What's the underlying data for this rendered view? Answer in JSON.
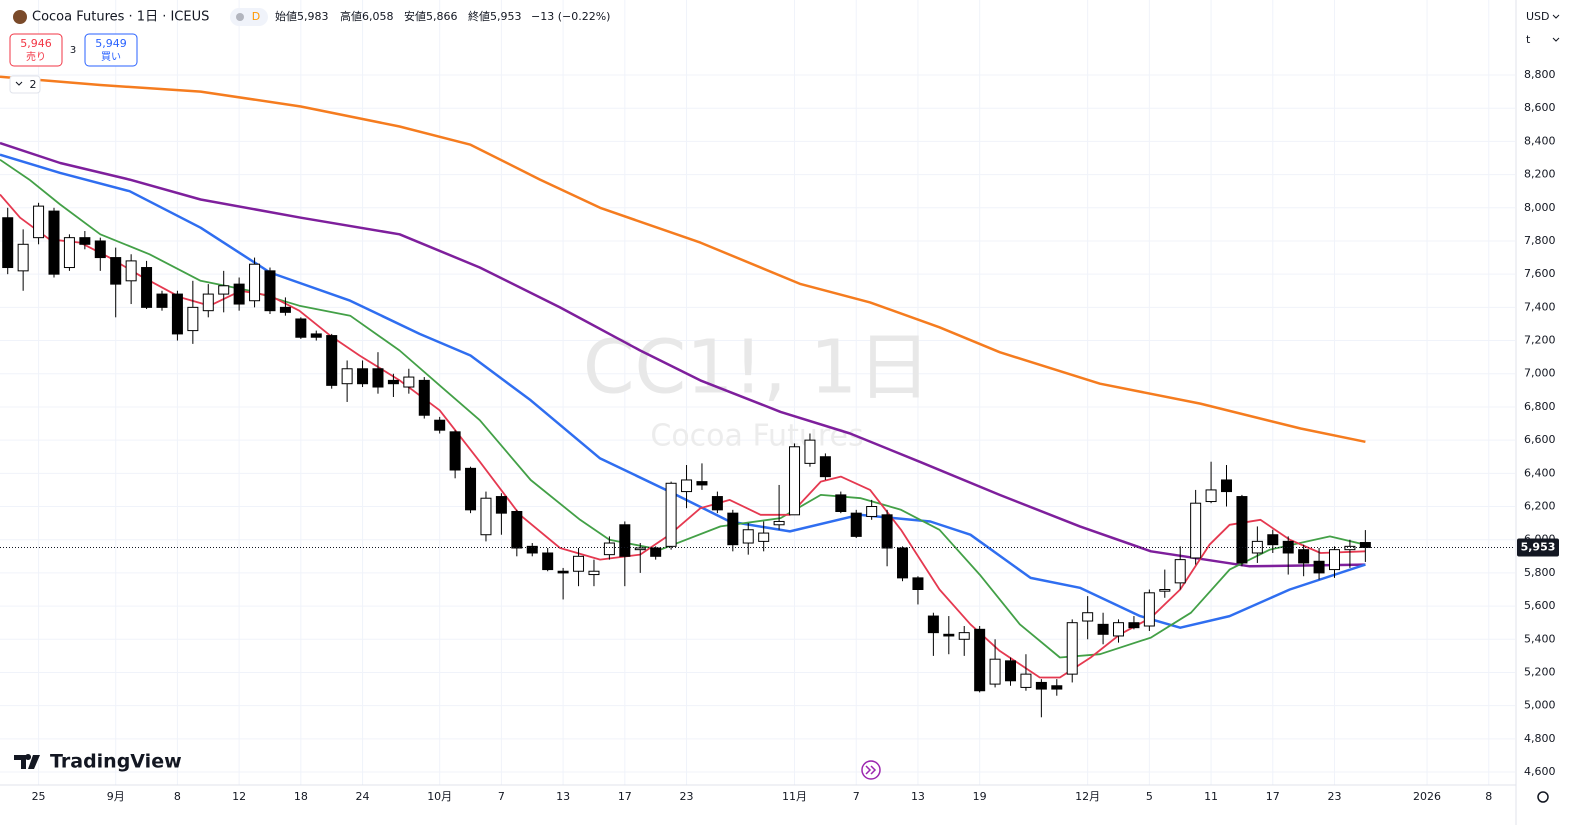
{
  "chart_data": {
    "type": "candlestick",
    "title": "Cocoa Futures · 1日 · ICEUS",
    "badge": "D",
    "ohlc_header": [
      {
        "label": "始値",
        "value": "5,983"
      },
      {
        "label": "高値",
        "value": "6,058"
      },
      {
        "label": "安値",
        "value": "5,866"
      },
      {
        "label": "終値",
        "value": "5,953"
      }
    ],
    "change": "−13 (−0.22%)",
    "trade": {
      "sell_price": "5,946",
      "sell": "売り",
      "spread": "3",
      "buy_price": "5,949",
      "buy": "買い"
    },
    "indicators_count": "2",
    "watermark": {
      "title": "CC1!, 1日",
      "subtitle": "Cocoa Futures"
    },
    "currency": "USD",
    "unit": "t",
    "last_price_label": "5,953",
    "logo": "TradingView",
    "open": [
      7940,
      7620,
      7820,
      7980,
      7640,
      7820,
      7800,
      7700,
      7560,
      7640,
      7480,
      7480,
      7260,
      7380,
      7480,
      7540,
      7440,
      7620,
      7400,
      7330,
      7240,
      7230,
      6940,
      7030,
      7030,
      6960,
      6920,
      6960,
      6720,
      6650,
      6430,
      6030,
      6260,
      6170,
      5960,
      5920,
      5810,
      5810,
      5790,
      5910,
      6090,
      5940,
      5950,
      5960,
      6290,
      6350,
      6260,
      6160,
      5980,
      5990,
      6090,
      6150,
      6460,
      6500,
      6270,
      6160,
      6140,
      6150,
      5950,
      5770,
      5540,
      5430,
      5400,
      5460,
      5130,
      5270,
      5110,
      5140,
      5120,
      5190,
      5510,
      5490,
      5420,
      5500,
      5480,
      5690,
      5740,
      5890,
      6230,
      6360,
      6260,
      5920,
      6030,
      5990,
      5940,
      5870,
      5820,
      5940,
      5983
    ],
    "high": [
      8000,
      7870,
      8030,
      8000,
      7840,
      7860,
      7820,
      7760,
      7720,
      7680,
      7500,
      7500,
      7560,
      7540,
      7620,
      7580,
      7700,
      7640,
      7460,
      7340,
      7260,
      7240,
      7080,
      7080,
      7130,
      7000,
      7030,
      6980,
      6740,
      6660,
      6440,
      6290,
      6280,
      6180,
      5980,
      5950,
      5830,
      5950,
      5880,
      6020,
      6110,
      5980,
      5960,
      6350,
      6450,
      6460,
      6290,
      6180,
      6100,
      6110,
      6330,
      6580,
      6640,
      6520,
      6290,
      6180,
      6240,
      6180,
      5960,
      5780,
      5560,
      5540,
      5480,
      5480,
      5400,
      5290,
      5310,
      5160,
      5160,
      5520,
      5660,
      5560,
      5520,
      5540,
      5700,
      5820,
      5960,
      6300,
      6470,
      6450,
      6270,
      6080,
      6060,
      6020,
      5970,
      5950,
      5960,
      6000,
      6058
    ],
    "low": [
      7600,
      7500,
      7780,
      7580,
      7620,
      7750,
      7620,
      7340,
      7420,
      7390,
      7380,
      7200,
      7180,
      7340,
      7370,
      7380,
      7400,
      7360,
      7350,
      7210,
      7200,
      6910,
      6830,
      6920,
      6880,
      6860,
      6880,
      6730,
      6640,
      6370,
      6160,
      5990,
      6030,
      5900,
      5900,
      5810,
      5640,
      5720,
      5720,
      5880,
      5720,
      5800,
      5880,
      5940,
      6190,
      6300,
      6160,
      5930,
      5910,
      5930,
      6060,
      6150,
      6440,
      6360,
      6160,
      6010,
      6120,
      5840,
      5750,
      5610,
      5300,
      5310,
      5300,
      5080,
      5110,
      5120,
      5090,
      4930,
      5060,
      5140,
      5400,
      5370,
      5380,
      5460,
      5450,
      5650,
      5700,
      5850,
      6220,
      6200,
      5840,
      5860,
      5920,
      5790,
      5780,
      5760,
      5770,
      5830,
      5866
    ],
    "close": [
      7640,
      7780,
      8010,
      7600,
      7820,
      7780,
      7700,
      7540,
      7680,
      7400,
      7400,
      7240,
      7400,
      7480,
      7530,
      7420,
      7660,
      7380,
      7370,
      7220,
      7220,
      6930,
      7030,
      6940,
      6920,
      6940,
      6980,
      6750,
      6660,
      6420,
      6180,
      6250,
      6160,
      5950,
      5920,
      5820,
      5800,
      5900,
      5810,
      5980,
      5900,
      5950,
      5900,
      6340,
      6360,
      6330,
      6180,
      5970,
      6060,
      6040,
      6110,
      6560,
      6600,
      6380,
      6170,
      6020,
      6200,
      5950,
      5770,
      5700,
      5440,
      5420,
      5440,
      5090,
      5280,
      5150,
      5190,
      5100,
      5100,
      5500,
      5560,
      5430,
      5500,
      5470,
      5680,
      5700,
      5880,
      6220,
      6300,
      6290,
      5860,
      5990,
      5970,
      5920,
      5860,
      5800,
      5940,
      5960,
      5953
    ],
    "series": [
      {
        "color": "#f57c1f",
        "x": [
          -0.5,
          6,
          12.5,
          19,
          25.4,
          30,
          34.5,
          38.4,
          44.9,
          51.4,
          55.9,
          60.4,
          64.3,
          70.8,
          77.3,
          83.8,
          88
        ],
        "values": [
          8790,
          8740,
          8700,
          8610,
          8490,
          8380,
          8170,
          8000,
          7790,
          7540,
          7430,
          7280,
          7130,
          6940,
          6820,
          6670,
          6590
        ]
      },
      {
        "color": "#7e1f9c",
        "x": [
          -0.5,
          3.4,
          7.9,
          12.5,
          19,
          25.4,
          30.6,
          35.8,
          41,
          44.9,
          50.1,
          54.6,
          59.1,
          64.3,
          69.5,
          74.1,
          80.5,
          88
        ],
        "values": [
          8390,
          8270,
          8170,
          8050,
          7940,
          7840,
          7640,
          7400,
          7140,
          6960,
          6770,
          6640,
          6470,
          6270,
          6080,
          5930,
          5840,
          5850
        ]
      },
      {
        "color": "#2f6ef0",
        "x": [
          -0.5,
          3.4,
          7.9,
          12.5,
          17,
          22.2,
          26.7,
          30,
          33.9,
          38.4,
          42.9,
          46.8,
          50.7,
          55.2,
          59.8,
          62.4,
          66.3,
          69.5,
          73.4,
          76,
          79.2,
          83.1,
          88
        ],
        "values": [
          8320,
          8210,
          8100,
          7880,
          7610,
          7440,
          7240,
          7110,
          6840,
          6490,
          6290,
          6110,
          6050,
          6150,
          6110,
          6030,
          5770,
          5710,
          5540,
          5470,
          5540,
          5700,
          5850
        ]
      },
      {
        "color": "#43a047",
        "x": [
          -0.5,
          1.4,
          3.4,
          6,
          9.2,
          12.5,
          15.7,
          18.9,
          22.2,
          25.4,
          28,
          30.6,
          33.9,
          37.1,
          39,
          42.3,
          46.2,
          50.1,
          52.7,
          55.3,
          57.9,
          60.4,
          63,
          65.6,
          68.2,
          70.8,
          74.1,
          76.7,
          79.2,
          81.8,
          85.7,
          88
        ],
        "values": [
          8290,
          8170,
          8020,
          7840,
          7720,
          7560,
          7500,
          7410,
          7350,
          7140,
          6930,
          6720,
          6360,
          6120,
          6000,
          5940,
          6080,
          6130,
          6270,
          6250,
          6180,
          6060,
          5790,
          5490,
          5290,
          5310,
          5410,
          5560,
          5820,
          5940,
          6020,
          5970
        ]
      },
      {
        "color": "#e53950",
        "x": [
          -0.5,
          0.8,
          2.7,
          4.7,
          6.6,
          8.6,
          11.2,
          13.1,
          15.1,
          17,
          18.9,
          20.9,
          22.8,
          25.4,
          28,
          30.6,
          33.2,
          35.8,
          38.4,
          41,
          42.9,
          44.9,
          46.8,
          48.8,
          50.7,
          52.7,
          54,
          55.9,
          57.9,
          60.4,
          62.4,
          64.3,
          66.9,
          68.2,
          70.2,
          72.1,
          74.1,
          76,
          77.9,
          79.2,
          81.2,
          83.1,
          85.1,
          88
        ],
        "values": [
          8080,
          7940,
          7810,
          7790,
          7700,
          7590,
          7460,
          7410,
          7500,
          7470,
          7380,
          7230,
          7110,
          6960,
          6780,
          6470,
          6150,
          5950,
          5880,
          5910,
          6030,
          6190,
          6240,
          6150,
          6150,
          6350,
          6380,
          6300,
          6060,
          5700,
          5490,
          5330,
          5170,
          5170,
          5290,
          5430,
          5530,
          5700,
          5970,
          6090,
          6120,
          6000,
          5920,
          5930
        ]
      }
    ],
    "xlim": [
      -0.5,
      97.7
    ],
    "xticks": [
      {
        "value": 2,
        "label": "25"
      },
      {
        "value": 7,
        "label": "9月"
      },
      {
        "value": 11,
        "label": "8"
      },
      {
        "value": 15,
        "label": "12"
      },
      {
        "value": 19,
        "label": "18"
      },
      {
        "value": 23,
        "label": "24"
      },
      {
        "value": 28,
        "label": "10月"
      },
      {
        "value": 32,
        "label": "7"
      },
      {
        "value": 36,
        "label": "13"
      },
      {
        "value": 40,
        "label": "17"
      },
      {
        "value": 44,
        "label": "23"
      },
      {
        "value": 51,
        "label": "11月"
      },
      {
        "value": 55,
        "label": "7"
      },
      {
        "value": 59,
        "label": "13"
      },
      {
        "value": 63,
        "label": "19"
      },
      {
        "value": 70,
        "label": "12月"
      },
      {
        "value": 74,
        "label": "5"
      },
      {
        "value": 78,
        "label": "11"
      },
      {
        "value": 82,
        "label": "17"
      },
      {
        "value": 86,
        "label": "23"
      },
      {
        "value": 92,
        "label": "2026"
      },
      {
        "value": 96,
        "label": "8"
      }
    ],
    "ylim": [
      4522,
      9252
    ],
    "yticks": [
      {
        "value": 4600,
        "label": "4,600"
      },
      {
        "value": 4800,
        "label": "4,800"
      },
      {
        "value": 5000,
        "label": "5,000"
      },
      {
        "value": 5200,
        "label": "5,200"
      },
      {
        "value": 5400,
        "label": "5,400"
      },
      {
        "value": 5600,
        "label": "5,600"
      },
      {
        "value": 5800,
        "label": "5,800"
      },
      {
        "value": 6000,
        "label": "6,000"
      },
      {
        "value": 6200,
        "label": "6,200"
      },
      {
        "value": 6400,
        "label": "6,400"
      },
      {
        "value": 6600,
        "label": "6,600"
      },
      {
        "value": 6800,
        "label": "6,800"
      },
      {
        "value": 7000,
        "label": "7,000"
      },
      {
        "value": 7200,
        "label": "7,200"
      },
      {
        "value": 7400,
        "label": "7,400"
      },
      {
        "value": 7600,
        "label": "7,600"
      },
      {
        "value": 7800,
        "label": "7,800"
      },
      {
        "value": 8000,
        "label": "8,000"
      },
      {
        "value": 8200,
        "label": "8,200"
      },
      {
        "value": 8400,
        "label": "8,400"
      },
      {
        "value": 8600,
        "label": "8,600"
      },
      {
        "value": 8800,
        "label": "8,800"
      }
    ],
    "grid": true,
    "up_color": "#ffffff",
    "down_color": "#000000"
  }
}
